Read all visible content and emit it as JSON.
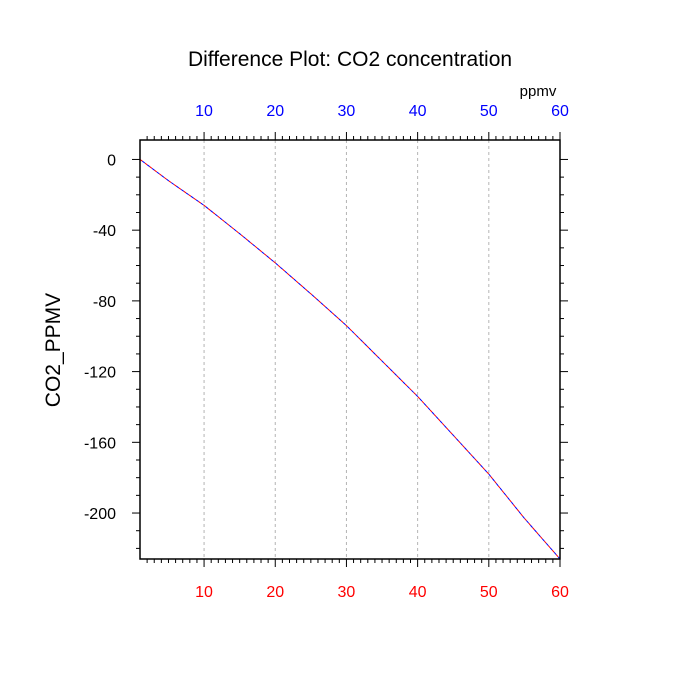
{
  "chart_data": {
    "type": "line",
    "title": "Difference Plot: CO2 concentration",
    "xlabel": "",
    "ylabel": "CO2_PPMV",
    "top_axis_unit": "ppmv",
    "xlim": [
      1,
      60
    ],
    "ylim": [
      -226,
      11
    ],
    "x_ticks": [
      10,
      20,
      30,
      40,
      50,
      60
    ],
    "y_ticks": [
      0,
      -40,
      -80,
      -120,
      -160,
      -200
    ],
    "grid": "vertical dashed at x ticks",
    "colors": {
      "bottom_tick_labels": "#ff0000",
      "top_tick_labels": "#0000ff",
      "series_dash_a": "#ff0000",
      "series_dash_b": "#0000ff",
      "grid": "#b4b4b4"
    },
    "series": [
      {
        "x": [
          1,
          5,
          10,
          15,
          20,
          25,
          30,
          35,
          40,
          45,
          50,
          55,
          60
        ],
        "values": [
          0,
          -12,
          -26,
          -42,
          -58.5,
          -76,
          -94,
          -114,
          -134,
          -156,
          -178,
          -203,
          -226
        ]
      }
    ]
  }
}
